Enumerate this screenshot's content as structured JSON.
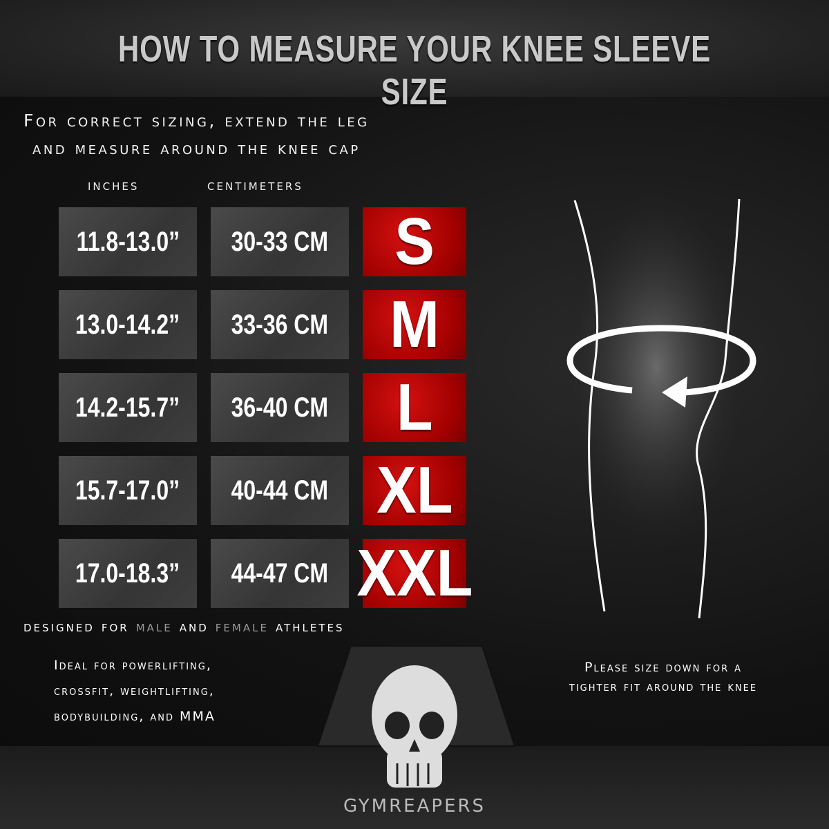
{
  "title": "HOW TO MEASURE YOUR KNEE SLEEVE SIZE",
  "subtitle": [
    "For correct sizing, extend the leg",
    "and measure around the knee cap"
  ],
  "columns": {
    "inches": "inches",
    "centimeters": "centimeters"
  },
  "sizes": [
    {
      "inches": "11.8-13.0”",
      "cm": "30-33 CM",
      "size": "S"
    },
    {
      "inches": "13.0-14.2”",
      "cm": "33-36 CM",
      "size": "M"
    },
    {
      "inches": "14.2-15.7”",
      "cm": "36-40 CM",
      "size": "L"
    },
    {
      "inches": "15.7-17.0”",
      "cm": "40-44 CM",
      "size": "XL"
    },
    {
      "inches": "17.0-18.3”",
      "cm": "44-47 CM",
      "size": "XXL"
    }
  ],
  "designed": {
    "a": "designed for",
    "male": "male",
    "b": "and",
    "female": "female",
    "c": "athletes"
  },
  "ideal": [
    "Ideal for powerlifting,",
    "crossfit, weightlifting,",
    "bodybuilding, and MMA"
  ],
  "please": [
    "Please size down for a",
    "tighter fit around the knee"
  ],
  "brand": "GYMREAPERS",
  "colors": {
    "size_red": "#c00a0a",
    "box_gray": "#404040",
    "background": "#161616"
  }
}
